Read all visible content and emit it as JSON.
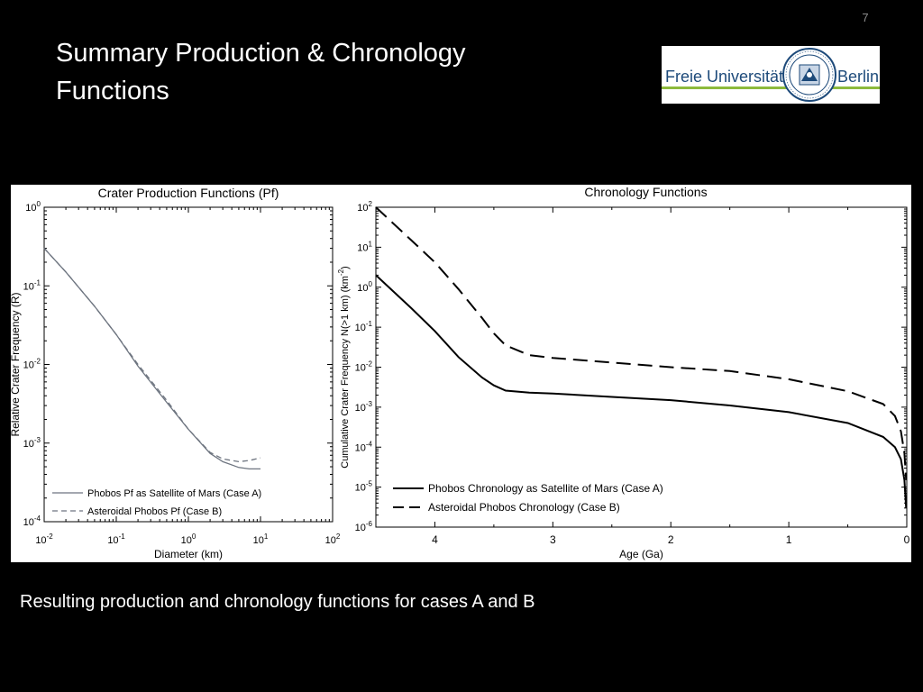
{
  "slide_number": "7",
  "title_line1": "Summary Production & Chronology",
  "title_line2": "Functions",
  "logo": {
    "left_word": "Freie Universität",
    "right_word": "Berlin"
  },
  "caption": "Resulting production and chronology functions for cases A and B",
  "chart_data": [
    {
      "type": "line",
      "title": "Crater Production Functions (Pf)",
      "xlabel": "Diameter (km)",
      "ylabel": "Relative Crater Frequency (R)",
      "xscale": "log",
      "yscale": "log",
      "xlim": [
        0.01,
        100
      ],
      "ylim": [
        0.0001,
        1
      ],
      "xticks": [
        {
          "base": "10",
          "exp": "-2",
          "v": 0.01
        },
        {
          "base": "10",
          "exp": "-1",
          "v": 0.1
        },
        {
          "base": "10",
          "exp": "0",
          "v": 1
        },
        {
          "base": "10",
          "exp": "1",
          "v": 10
        },
        {
          "base": "10",
          "exp": "2",
          "v": 100
        }
      ],
      "yticks": [
        {
          "base": "10",
          "exp": "-4",
          "v": 0.0001
        },
        {
          "base": "10",
          "exp": "-3",
          "v": 0.001
        },
        {
          "base": "10",
          "exp": "-2",
          "v": 0.01
        },
        {
          "base": "10",
          "exp": "-1",
          "v": 0.1
        },
        {
          "base": "10",
          "exp": "0",
          "v": 1
        }
      ],
      "legend_position": "bottom-left",
      "grid": false,
      "series": [
        {
          "name": "Phobos Pf as Satellite of Mars (Case A)",
          "style": "solid",
          "color": "#6e7580",
          "x": [
            0.01,
            0.02,
            0.05,
            0.1,
            0.2,
            0.5,
            1,
            2,
            3,
            5,
            7,
            10
          ],
          "y": [
            0.3,
            0.15,
            0.055,
            0.024,
            0.0095,
            0.0033,
            0.0015,
            0.00074,
            0.00058,
            0.00049,
            0.00047,
            0.00047
          ]
        },
        {
          "name": "Asteroidal Phobos Pf (Case B)",
          "style": "dashed",
          "color": "#6e7580",
          "x": [
            0.01,
            0.02,
            0.05,
            0.1,
            0.2,
            0.5,
            1,
            2,
            3,
            5,
            7,
            10
          ],
          "y": [
            0.3,
            0.15,
            0.055,
            0.024,
            0.01,
            0.0035,
            0.0015,
            0.00076,
            0.00063,
            0.00058,
            0.0006,
            0.00065
          ]
        }
      ]
    },
    {
      "type": "line",
      "title": "Chronology Functions",
      "xlabel": "Age (Ga)",
      "ylabel": "Cumulative Crater Frequency N(>1 km) (km",
      "ylabel_superscript": "-2",
      "ylabel_close": ")",
      "xscale": "linear",
      "yscale": "log",
      "xlim": [
        4.5,
        0
      ],
      "ylim": [
        1e-06,
        100
      ],
      "xticks": [
        "4",
        "3",
        "2",
        "1",
        "0"
      ],
      "yticks": [
        {
          "base": "10",
          "exp": "-6",
          "v": 1e-06
        },
        {
          "base": "10",
          "exp": "-5",
          "v": 1e-05
        },
        {
          "base": "10",
          "exp": "-4",
          "v": 0.0001
        },
        {
          "base": "10",
          "exp": "-3",
          "v": 0.001
        },
        {
          "base": "10",
          "exp": "-2",
          "v": 0.01
        },
        {
          "base": "10",
          "exp": "-1",
          "v": 0.1
        },
        {
          "base": "10",
          "exp": "0",
          "v": 1
        },
        {
          "base": "10",
          "exp": "1",
          "v": 10
        },
        {
          "base": "10",
          "exp": "2",
          "v": 100
        }
      ],
      "legend_position": "bottom-left",
      "grid": false,
      "series": [
        {
          "name": "Phobos Chronology as Satellite of Mars (Case A)",
          "style": "solid",
          "color": "#000000",
          "x": [
            4.5,
            4.2,
            4.0,
            3.8,
            3.6,
            3.5,
            3.4,
            3.2,
            3.0,
            2.5,
            2.0,
            1.5,
            1.0,
            0.5,
            0.2,
            0.1,
            0.05,
            0.02,
            0.005
          ],
          "y": [
            2.0,
            0.3,
            0.08,
            0.018,
            0.0055,
            0.0035,
            0.0026,
            0.0023,
            0.0022,
            0.0018,
            0.0015,
            0.0011,
            0.00075,
            0.0004,
            0.00018,
            0.0001,
            5e-05,
            1.5e-05,
            3e-06
          ]
        },
        {
          "name": "Asteroidal Phobos Chronology (Case B)",
          "style": "dashed",
          "color": "#000000",
          "x": [
            4.5,
            4.2,
            4.0,
            3.8,
            3.6,
            3.5,
            3.4,
            3.2,
            3.0,
            2.5,
            2.0,
            1.5,
            1.0,
            0.5,
            0.2,
            0.1,
            0.05,
            0.02,
            0.005
          ],
          "y": [
            100,
            15,
            4.2,
            0.9,
            0.17,
            0.07,
            0.035,
            0.02,
            0.017,
            0.013,
            0.01,
            0.008,
            0.005,
            0.0025,
            0.0012,
            0.0006,
            0.00025,
            7e-05,
            1.5e-05
          ]
        }
      ]
    }
  ]
}
